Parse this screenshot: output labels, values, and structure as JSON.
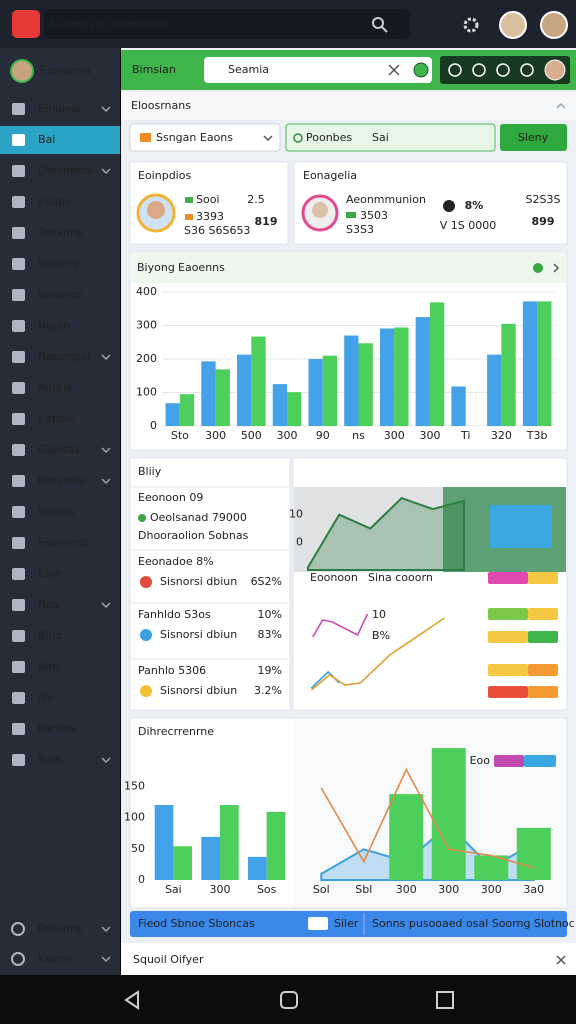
{
  "header": {
    "title": "Kamngaai Unonerdiai"
  },
  "sidebar": {
    "user": "Eonoonia",
    "active": 1,
    "items": [
      {
        "label": "Einioeis",
        "chevron": true
      },
      {
        "label": "Bai",
        "chevron": false
      },
      {
        "label": "Dioonenal",
        "chevron": true
      },
      {
        "label": "Eaops",
        "chevron": false
      },
      {
        "label": "Tooanns",
        "chevron": false
      },
      {
        "label": "Soiinng",
        "chevron": false
      },
      {
        "label": "Siooiiion",
        "chevron": false
      },
      {
        "label": "Nigan",
        "chevron": false
      },
      {
        "label": "Neonngar",
        "chevron": true
      },
      {
        "label": "Ainitis",
        "chevron": false
      },
      {
        "label": "Eapoul",
        "chevron": false
      },
      {
        "label": "Gaeitas",
        "chevron": true
      },
      {
        "label": "Eoraonis",
        "chevron": true
      },
      {
        "label": "Soanis",
        "chevron": false
      },
      {
        "label": "Esonondl",
        "chevron": false
      },
      {
        "label": "Eion",
        "chevron": false
      },
      {
        "label": "Nea",
        "chevron": true
      },
      {
        "label": "Bino",
        "chevron": false
      },
      {
        "label": "Ban",
        "chevron": false
      },
      {
        "label": "Na",
        "chevron": false
      },
      {
        "label": "Pankes",
        "chevron": false
      },
      {
        "label": "Bais",
        "chevron": true
      }
    ],
    "footer": [
      "Dioonns",
      "Kaonis"
    ]
  },
  "toolbar": {
    "label": "Bimsian",
    "search": "Seamia"
  },
  "section": {
    "title": "Eloosrnans"
  },
  "filters": {
    "select": "Ssngan Eaons",
    "tab_a": "Poonbes",
    "tab_b": "Sai",
    "button": "Sleny"
  },
  "card_a": {
    "title": "Eoinpdios",
    "lines": [
      "Sooi",
      "3393",
      "S36 S6S653"
    ],
    "small": "2.5",
    "value": "819"
  },
  "card_b": {
    "title": "Eonagelia",
    "lines": [
      "Aeonmmunion",
      "3503",
      "S3S3"
    ],
    "stat": "8%",
    "stat_sub": "V 1S 0000",
    "small": "S2S3S",
    "value": "899"
  },
  "bar_panel": {
    "title": "Biyong",
    "subtitle": "Eaoenns",
    "chart": {
      "type": "bar",
      "categories": [
        "Sto",
        "300",
        "500",
        "300",
        "90",
        "ns",
        "300",
        "300",
        "Ti",
        "320",
        "T3b"
      ],
      "ylim": [
        0,
        400
      ],
      "yticks": [
        0,
        100,
        200,
        300,
        400
      ],
      "grid": true,
      "series": [
        {
          "color": "#44a3e8",
          "values": [
            68,
            193,
            213,
            125,
            200,
            270,
            291,
            325,
            118,
            213,
            372
          ]
        },
        {
          "color": "#4ccf5b",
          "values": [
            95,
            169,
            267,
            101,
            210,
            247,
            294,
            369,
            null,
            305,
            372
          ]
        }
      ]
    }
  },
  "list_panel": {
    "title": "Bliiy",
    "lines": [
      "Eeonoon 09",
      "Oeolsanad 79000",
      "Dhooraolion Sobnas"
    ],
    "rows": [
      {
        "title": "Eeonadoe 8%",
        "label": "Sisnorsi dbiun",
        "value": "6S2%"
      },
      {
        "title": "Fanhldo S3os",
        "pct": "10%",
        "label": "Sisnorsi dbiun",
        "value": "83%"
      },
      {
        "title": "Panhlo 5306",
        "pct": "19%",
        "label": "Sisnorsi dbiun",
        "value": "3.2%"
      }
    ]
  },
  "trend_panel": {
    "area": {
      "type": "area",
      "x": [
        0,
        1,
        2,
        3,
        4,
        5
      ],
      "xlim": [
        0,
        5
      ],
      "ylim": [
        -10,
        20
      ],
      "yticks": [
        0,
        10
      ],
      "series": [
        {
          "kind": "area",
          "color": "#2e7d42",
          "values": [
            -9,
            10,
            5,
            16,
            12,
            15
          ]
        }
      ]
    },
    "labels": [
      "Eoonoon",
      "Sina cooorn"
    ],
    "lines": {
      "type": "line",
      "xlim": [
        0,
        10
      ],
      "ylim": [
        0,
        100
      ],
      "series": [
        {
          "kind": "line",
          "color": "#d04ab0",
          "x": [
            0.2,
            0.9,
            1.6,
            3.4,
            4.1
          ],
          "values": [
            63,
            80,
            78,
            65,
            86
          ]
        },
        {
          "kind": "line",
          "color": "#3aa0e0",
          "x": [
            0.1,
            1.3,
            2.1
          ],
          "values": [
            12,
            28,
            17
          ]
        },
        {
          "kind": "line",
          "color": "#e0a030",
          "x": [
            0.1,
            1.4,
            2.5,
            3.6,
            5.7,
            9.6
          ],
          "values": [
            10,
            25,
            15,
            17,
            45,
            82
          ]
        }
      ]
    },
    "notes": [
      "10",
      "B%"
    ]
  },
  "bottom_panel": {
    "title": "Dihrecrrenrne",
    "legend": "Eoo",
    "left_chart": {
      "type": "bar",
      "categories": [
        "Sai",
        "300",
        "Sos"
      ],
      "ylim": [
        0,
        200
      ],
      "yticks": [
        0,
        50,
        100,
        150
      ],
      "series": [
        {
          "color": "#44a3e8",
          "values": [
            120,
            69,
            37
          ]
        },
        {
          "color": "#4ccf5b",
          "values": [
            54,
            120,
            109
          ]
        }
      ]
    },
    "right_chart": {
      "type": "combo",
      "categories": [
        "Sol",
        "Sbl",
        "300",
        "300",
        "300",
        "3a0"
      ],
      "ylim": [
        0,
        220
      ],
      "series": [
        {
          "kind": "area",
          "color": "#3aa0e0",
          "values": [
            10,
            50,
            30,
            90,
            20,
            60
          ]
        },
        {
          "kind": "bar",
          "color": "#4ccf5b",
          "values": [
            null,
            null,
            140,
            215,
            40,
            85
          ]
        },
        {
          "kind": "line",
          "color": "#e08a4a",
          "values": [
            150,
            30,
            180,
            50,
            40,
            20
          ]
        }
      ]
    }
  },
  "banner": {
    "left": "Fieod Sbnoe Sboncas",
    "tag": "Siler",
    "right": "Sonns pusooaed osal Soorng Slotnoc"
  },
  "footer": {
    "title": "Squoil Oifyer"
  }
}
